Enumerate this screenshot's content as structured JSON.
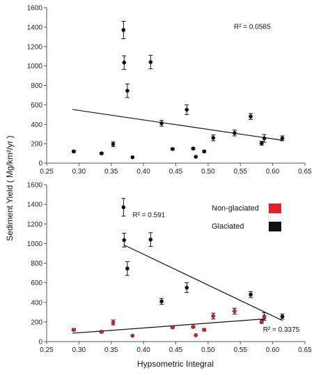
{
  "chart_data": [
    {
      "type": "scatter",
      "title": "",
      "xlabel": "",
      "ylabel": "Sediment Yield ( Mg/km²/yr )",
      "xlim": [
        0.25,
        0.65
      ],
      "ylim": [
        0,
        1600
      ],
      "x_ticks": [
        "0.25",
        "0.30",
        "0.35",
        "0.40",
        "0.45",
        "0.50",
        "0.55",
        "0.60",
        "0.65"
      ],
      "y_ticks": [
        "0",
        "200",
        "400",
        "600",
        "800",
        "1000",
        "1200",
        "1400",
        "1600"
      ],
      "annotations": [
        {
          "text": "R² = 0.0585",
          "x": 0.54,
          "y": 1380
        }
      ],
      "series": [
        {
          "color": "#111111",
          "points": [
            {
              "x": 0.292,
              "y": 120,
              "err": 10
            },
            {
              "x": 0.335,
              "y": 100,
              "err": 10
            },
            {
              "x": 0.353,
              "y": 195,
              "err": 25
            },
            {
              "x": 0.369,
              "y": 1370,
              "err": 90
            },
            {
              "x": 0.37,
              "y": 1035,
              "err": 70
            },
            {
              "x": 0.375,
              "y": 745,
              "err": 70
            },
            {
              "x": 0.383,
              "y": 60,
              "err": 0
            },
            {
              "x": 0.411,
              "y": 1040,
              "err": 70
            },
            {
              "x": 0.428,
              "y": 410,
              "err": 30
            },
            {
              "x": 0.445,
              "y": 145,
              "err": 10
            },
            {
              "x": 0.467,
              "y": 550,
              "err": 50
            },
            {
              "x": 0.477,
              "y": 150,
              "err": 10
            },
            {
              "x": 0.481,
              "y": 65,
              "err": 0
            },
            {
              "x": 0.494,
              "y": 120,
              "err": 10
            },
            {
              "x": 0.508,
              "y": 260,
              "err": 30
            },
            {
              "x": 0.541,
              "y": 310,
              "err": 30
            },
            {
              "x": 0.566,
              "y": 480,
              "err": 30
            },
            {
              "x": 0.583,
              "y": 205,
              "err": 20
            },
            {
              "x": 0.587,
              "y": 255,
              "err": 40
            },
            {
              "x": 0.615,
              "y": 255,
              "err": 25
            }
          ]
        }
      ],
      "trendlines": [
        {
          "color": "#111111",
          "x": [
            0.29,
            0.615
          ],
          "y": [
            552,
            235
          ]
        }
      ]
    },
    {
      "type": "scatter",
      "title": "",
      "xlabel": "Hypsometric Integral",
      "ylabel": "Sediment Yield ( Mg/km²/yr )",
      "xlim": [
        0.25,
        0.65
      ],
      "ylim": [
        0,
        1600
      ],
      "x_ticks": [
        "0.25",
        "0.30",
        "0.35",
        "0.40",
        "0.45",
        "0.50",
        "0.55",
        "0.60",
        "0.65"
      ],
      "y_ticks": [
        "0",
        "200",
        "400",
        "600",
        "800",
        "1000",
        "1200",
        "1400",
        "1600"
      ],
      "legend_position": "top-right",
      "annotations": [
        {
          "text": "R² = 0.591",
          "x": 0.383,
          "y": 1270
        },
        {
          "text": "R² = 0.3375",
          "x": 0.585,
          "y": 100
        }
      ],
      "series": [
        {
          "name": "Non-glaciated",
          "color": "#e0202a",
          "points": [
            {
              "x": 0.292,
              "y": 120,
              "err": 10
            },
            {
              "x": 0.335,
              "y": 100,
              "err": 10
            },
            {
              "x": 0.353,
              "y": 195,
              "err": 25
            },
            {
              "x": 0.383,
              "y": 60,
              "err": 0
            },
            {
              "x": 0.445,
              "y": 145,
              "err": 10
            },
            {
              "x": 0.477,
              "y": 150,
              "err": 10
            },
            {
              "x": 0.481,
              "y": 65,
              "err": 0
            },
            {
              "x": 0.494,
              "y": 120,
              "err": 10
            },
            {
              "x": 0.508,
              "y": 260,
              "err": 30
            },
            {
              "x": 0.541,
              "y": 310,
              "err": 30
            },
            {
              "x": 0.583,
              "y": 205,
              "err": 20
            },
            {
              "x": 0.587,
              "y": 255,
              "err": 40
            }
          ]
        },
        {
          "name": "Glaciated",
          "color": "#111111",
          "points": [
            {
              "x": 0.369,
              "y": 1370,
              "err": 90
            },
            {
              "x": 0.37,
              "y": 1035,
              "err": 70
            },
            {
              "x": 0.375,
              "y": 745,
              "err": 70
            },
            {
              "x": 0.411,
              "y": 1040,
              "err": 70
            },
            {
              "x": 0.428,
              "y": 410,
              "err": 30
            },
            {
              "x": 0.467,
              "y": 550,
              "err": 50
            },
            {
              "x": 0.566,
              "y": 480,
              "err": 30
            },
            {
              "x": 0.615,
              "y": 255,
              "err": 25
            }
          ]
        }
      ],
      "trendlines": [
        {
          "color": "#111111",
          "x": [
            0.37,
            0.615
          ],
          "y": [
            985,
            215
          ]
        },
        {
          "color": "#111111",
          "x": [
            0.29,
            0.59
          ],
          "y": [
            85,
            232
          ]
        }
      ]
    }
  ]
}
